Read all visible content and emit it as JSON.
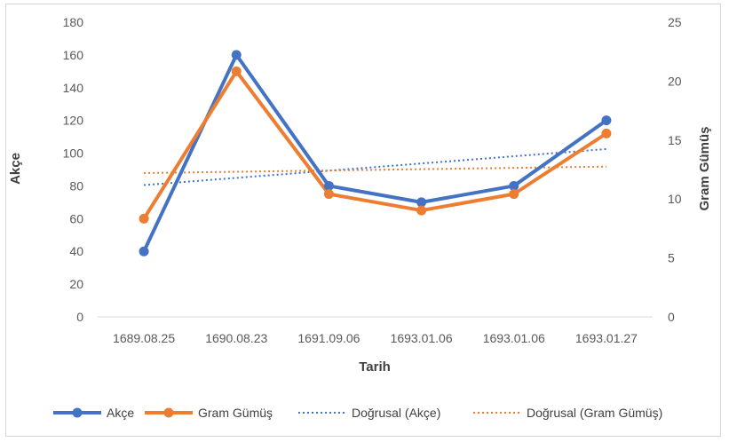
{
  "chart_data": {
    "type": "line",
    "title": "",
    "xlabel": "Tarih",
    "ylabel": "Akçe",
    "y2label": "Gram Gümüş",
    "categories": [
      "1689.08.25",
      "1690.08.23",
      "1691.09.06",
      "1693.01.06",
      "1693.01.06",
      "1693.01.27"
    ],
    "ylim": [
      0,
      180
    ],
    "yticks": [
      0,
      20,
      40,
      60,
      80,
      100,
      120,
      140,
      160,
      180
    ],
    "y2lim": [
      0,
      25
    ],
    "y2ticks": [
      0,
      5,
      10,
      15,
      20,
      25
    ],
    "grid": false,
    "legend_position": "bottom",
    "series": [
      {
        "name": "Akçe",
        "axis": "left",
        "color": "#4472C4",
        "values": [
          40,
          160,
          80,
          70,
          80,
          120
        ]
      },
      {
        "name": "Gram Gümüş",
        "axis": "right",
        "color": "#ED7D31",
        "values": [
          8.33,
          20.83,
          10.42,
          9.03,
          10.42,
          15.56
        ]
      }
    ],
    "trendlines": [
      {
        "name": "Doğrusal (Akçe)",
        "axis": "left",
        "color": "#4472C4",
        "start": 80.5,
        "end": 102.5
      },
      {
        "name": "Doğrusal (Gram Gümüş)",
        "axis": "right",
        "color": "#ED7D31",
        "start": 12.2,
        "end": 12.75
      }
    ]
  }
}
